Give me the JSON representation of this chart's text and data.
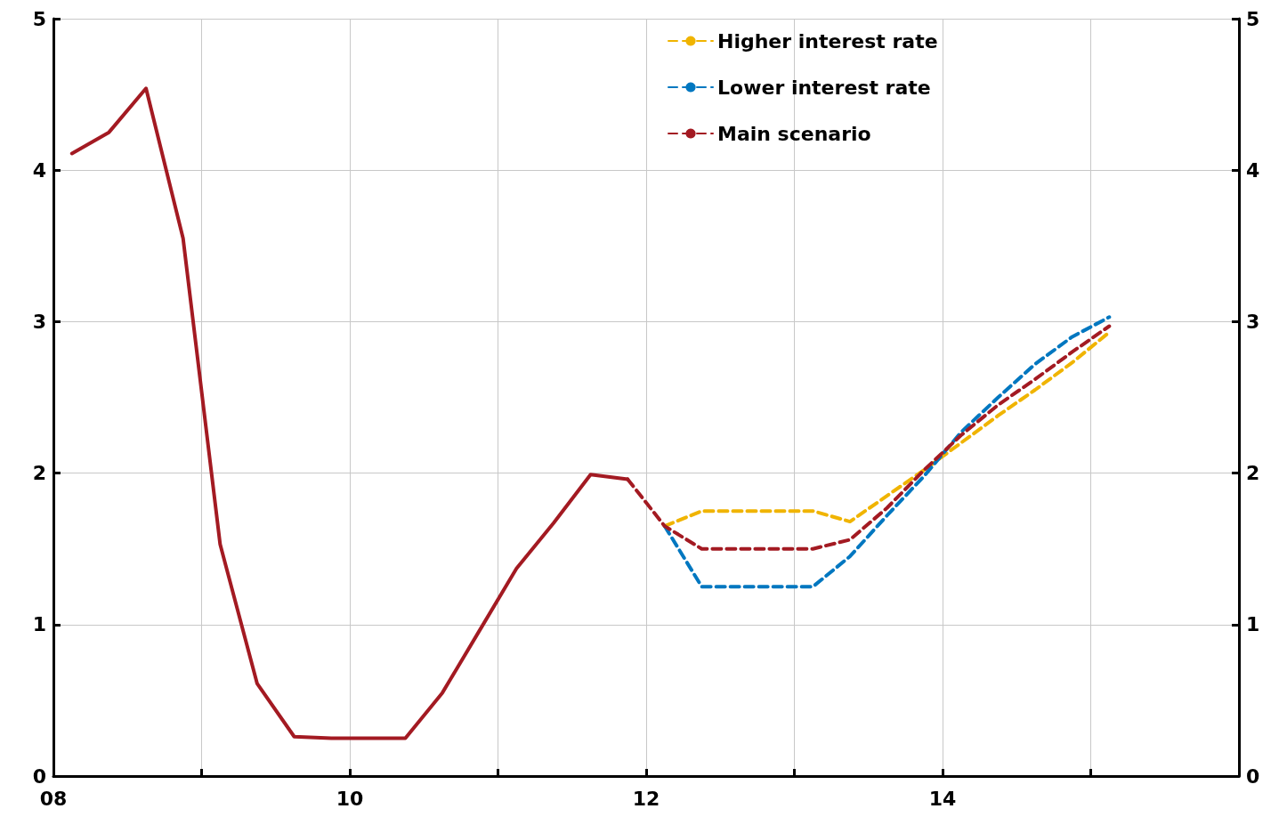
{
  "chart_data": {
    "type": "line",
    "xlim": [
      2008,
      2016
    ],
    "xticks": [
      {
        "value": 2008,
        "label": "08"
      },
      {
        "value": 2009,
        "label": null
      },
      {
        "value": 2010,
        "label": "10"
      },
      {
        "value": 2011,
        "label": null
      },
      {
        "value": 2012,
        "label": "12"
      },
      {
        "value": 2013,
        "label": null
      },
      {
        "value": 2014,
        "label": "14"
      },
      {
        "value": 2015,
        "label": null
      }
    ],
    "ylim": [
      0,
      5
    ],
    "yticks": [
      0,
      1,
      2,
      3,
      4,
      5
    ],
    "y2lim": [
      0,
      5
    ],
    "y2ticks": [
      0,
      1,
      2,
      3,
      4,
      5
    ],
    "grid": true,
    "legend": "top",
    "marker": "none",
    "series": [
      {
        "color": "#a31a22",
        "line_style": "solid",
        "x": [
          2008.125,
          2008.375,
          2008.625,
          2008.875,
          2009.125,
          2009.375,
          2009.625,
          2009.875,
          2010.125,
          2010.375,
          2010.625,
          2010.875,
          2011.125,
          2011.375,
          2011.625,
          2011.875
        ],
        "values": [
          4.11,
          4.25,
          4.54,
          3.55,
          1.53,
          0.61,
          0.26,
          0.25,
          0.25,
          0.25,
          0.55,
          0.96,
          1.37,
          1.67,
          1.99,
          1.96
        ]
      },
      {
        "name": "Higher interest rate",
        "color": "#f0b400",
        "line_style": "dashed",
        "x": [
          2012.125,
          2012.375,
          2012.625,
          2012.875,
          2013.125,
          2013.375,
          2013.625,
          2013.875,
          2014.125,
          2014.375,
          2014.625,
          2014.875,
          2015.125
        ],
        "values": [
          1.65,
          1.75,
          1.75,
          1.75,
          1.75,
          1.68,
          1.85,
          2.02,
          2.2,
          2.38,
          2.55,
          2.73,
          2.93
        ]
      },
      {
        "name": "Lower interest rate",
        "color": "#0077c0",
        "line_style": "dashed",
        "x": [
          2012.125,
          2012.375,
          2012.625,
          2012.875,
          2013.125,
          2013.375,
          2013.625,
          2013.875,
          2014.125,
          2014.375,
          2014.625,
          2014.875,
          2015.125
        ],
        "values": [
          1.65,
          1.25,
          1.25,
          1.25,
          1.25,
          1.45,
          1.72,
          1.98,
          2.27,
          2.5,
          2.72,
          2.9,
          3.03
        ]
      },
      {
        "name": "Main scenario",
        "color": "#a31a22",
        "line_style": "dashed",
        "x": [
          2011.875,
          2012.125,
          2012.375,
          2012.625,
          2012.875,
          2013.125,
          2013.375,
          2013.625,
          2013.875,
          2014.125,
          2014.375,
          2014.625,
          2014.875,
          2015.125
        ],
        "values": [
          1.96,
          1.65,
          1.5,
          1.5,
          1.5,
          1.5,
          1.56,
          1.77,
          2.02,
          2.25,
          2.45,
          2.62,
          2.8,
          2.97
        ]
      }
    ]
  }
}
